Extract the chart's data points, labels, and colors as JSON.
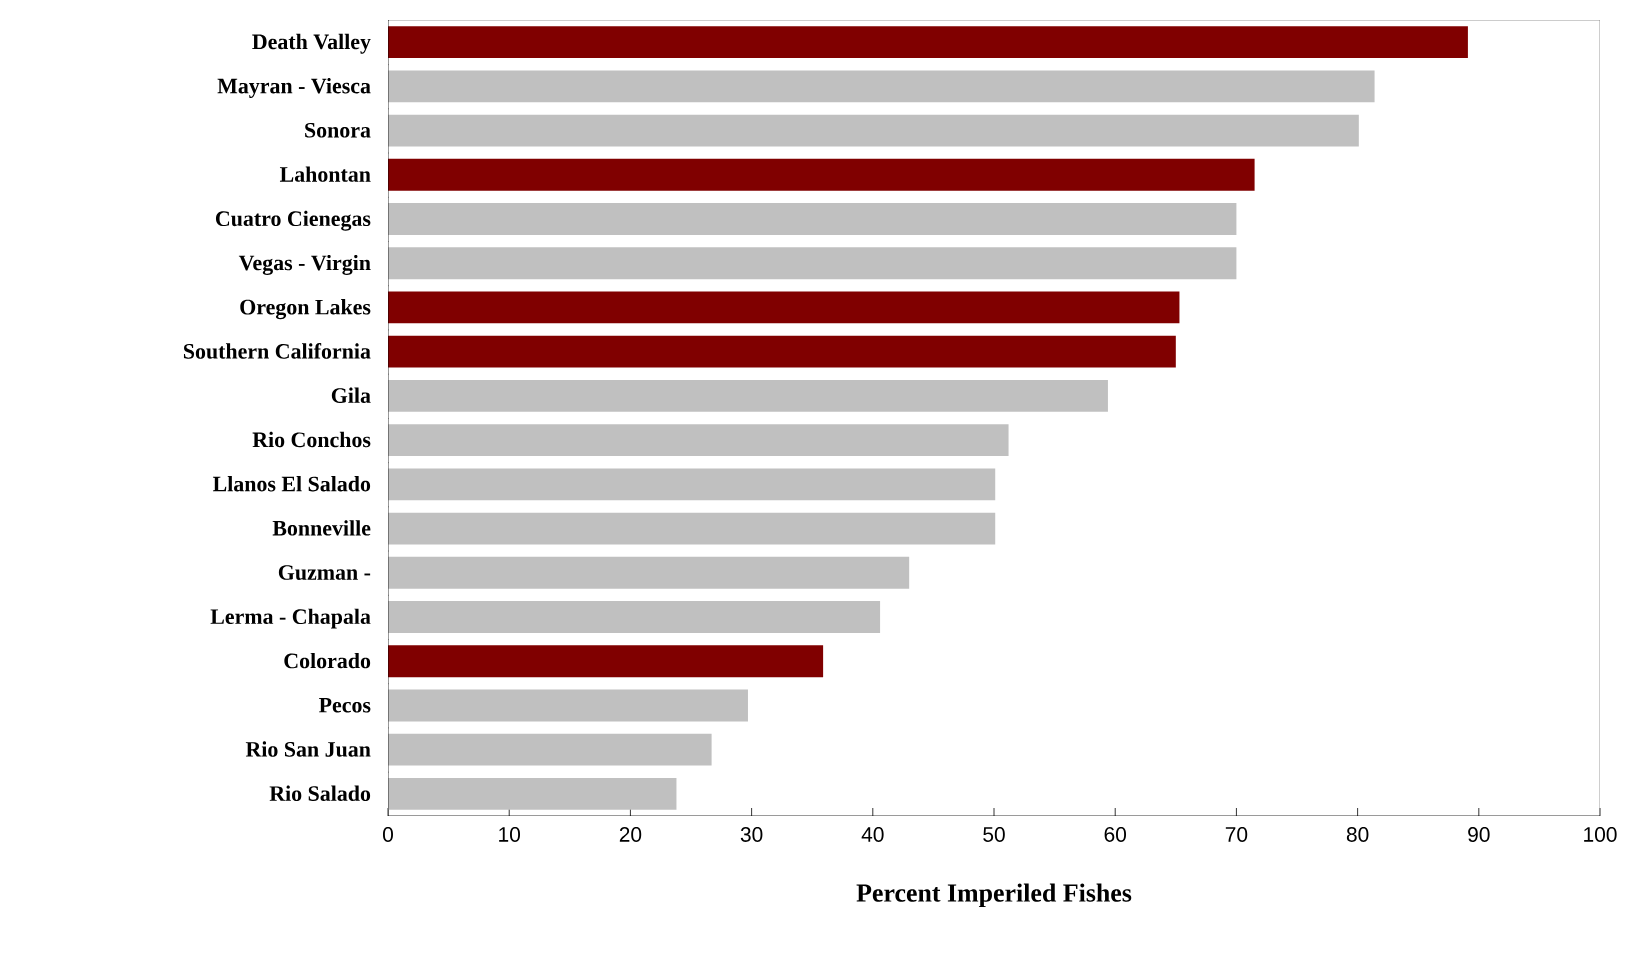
{
  "chart_data": {
    "type": "bar",
    "orientation": "horizontal",
    "xlabel": "Percent Imperiled Fishes",
    "categories": [
      "Death Valley",
      "Mayran - Viesca",
      "Sonora",
      "Lahontan",
      "Cuatro Cienegas",
      "Vegas - Virgin",
      "Oregon Lakes",
      "Southern California",
      "Gila",
      "Rio Conchos",
      "Llanos El Salado",
      "Bonneville",
      "Guzman -",
      "Lerma - Chapala",
      "Colorado",
      "Pecos",
      "Rio San Juan",
      "Rio Salado"
    ],
    "values": [
      89.1,
      81.4,
      80.1,
      71.5,
      70.0,
      70.0,
      65.3,
      65.0,
      59.4,
      51.2,
      50.1,
      50.1,
      43.0,
      40.6,
      35.9,
      29.7,
      26.7,
      23.8
    ],
    "colors": [
      "#800000",
      "#c0c0c0",
      "#c0c0c0",
      "#800000",
      "#c0c0c0",
      "#c0c0c0",
      "#800000",
      "#800000",
      "#c0c0c0",
      "#c0c0c0",
      "#c0c0c0",
      "#c0c0c0",
      "#c0c0c0",
      "#c0c0c0",
      "#800000",
      "#c0c0c0",
      "#c0c0c0",
      "#c0c0c0"
    ],
    "xlim": [
      0,
      100
    ],
    "xticks": [
      0,
      10,
      20,
      30,
      40,
      50,
      60,
      70,
      80,
      90,
      100
    ],
    "grid": false
  }
}
